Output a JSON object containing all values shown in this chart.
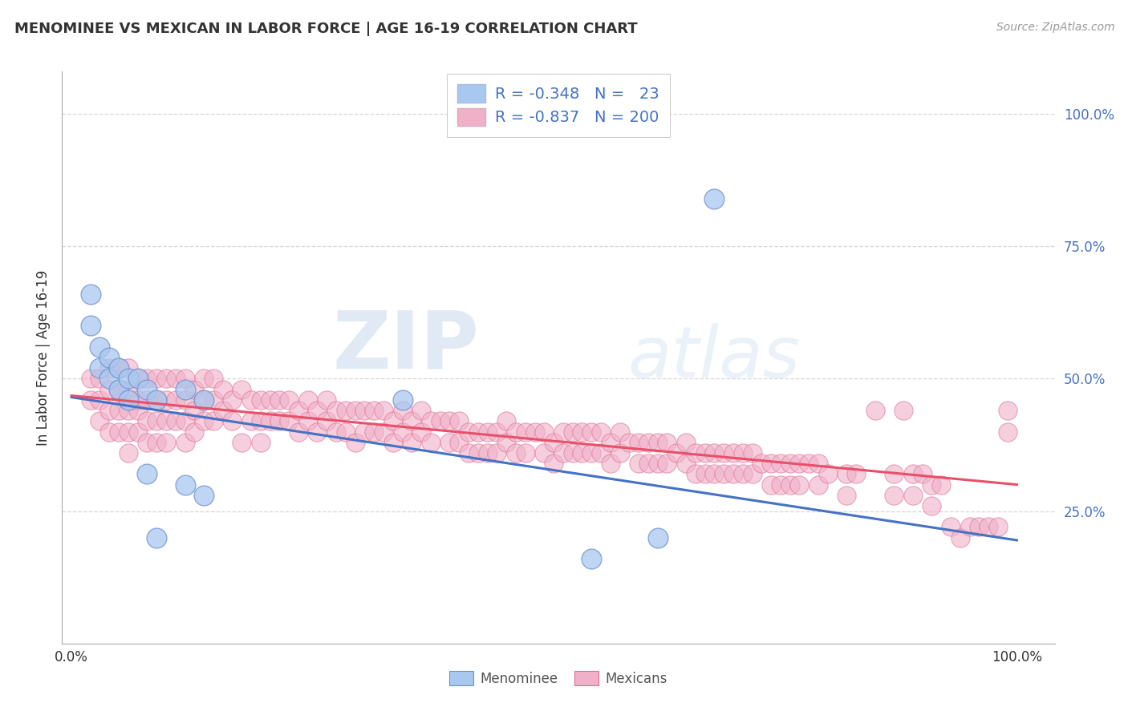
{
  "title": "MENOMINEE VS MEXICAN IN LABOR FORCE | AGE 16-19 CORRELATION CHART",
  "source": "Source: ZipAtlas.com",
  "ylabel": "In Labor Force | Age 16-19",
  "ytick_vals": [
    0.25,
    0.5,
    0.75,
    1.0
  ],
  "ytick_labels": [
    "25.0%",
    "50.0%",
    "75.0%",
    "100.0%"
  ],
  "xtick_vals": [
    0.0,
    1.0
  ],
  "xtick_labels": [
    "0.0%",
    "100.0%"
  ],
  "xlim": [
    -0.01,
    1.04
  ],
  "ylim": [
    0.0,
    1.08
  ],
  "legend_line1": "R = -0.348   N =   23",
  "legend_line2": "R = -0.837   N = 200",
  "menominee_color": "#a8c8f0",
  "mexican_color": "#f0b0c8",
  "menominee_edge_color": "#7090d0",
  "mexican_edge_color": "#e07090",
  "menominee_line_color": "#4472c4",
  "mexican_line_color": "#e8506a",
  "menominee_scatter": [
    [
      0.02,
      0.66
    ],
    [
      0.02,
      0.6
    ],
    [
      0.03,
      0.56
    ],
    [
      0.03,
      0.52
    ],
    [
      0.04,
      0.54
    ],
    [
      0.04,
      0.5
    ],
    [
      0.05,
      0.52
    ],
    [
      0.05,
      0.48
    ],
    [
      0.06,
      0.5
    ],
    [
      0.06,
      0.46
    ],
    [
      0.07,
      0.5
    ],
    [
      0.08,
      0.48
    ],
    [
      0.09,
      0.46
    ],
    [
      0.12,
      0.48
    ],
    [
      0.14,
      0.46
    ],
    [
      0.08,
      0.32
    ],
    [
      0.12,
      0.3
    ],
    [
      0.14,
      0.28
    ],
    [
      0.09,
      0.2
    ],
    [
      0.35,
      0.46
    ],
    [
      0.55,
      0.16
    ],
    [
      0.62,
      0.2
    ],
    [
      0.68,
      0.84
    ]
  ],
  "mexican_scatter": [
    [
      0.02,
      0.5
    ],
    [
      0.02,
      0.46
    ],
    [
      0.03,
      0.5
    ],
    [
      0.03,
      0.46
    ],
    [
      0.03,
      0.42
    ],
    [
      0.04,
      0.52
    ],
    [
      0.04,
      0.48
    ],
    [
      0.04,
      0.44
    ],
    [
      0.04,
      0.4
    ],
    [
      0.05,
      0.52
    ],
    [
      0.05,
      0.48
    ],
    [
      0.05,
      0.44
    ],
    [
      0.05,
      0.4
    ],
    [
      0.06,
      0.52
    ],
    [
      0.06,
      0.48
    ],
    [
      0.06,
      0.44
    ],
    [
      0.06,
      0.4
    ],
    [
      0.06,
      0.36
    ],
    [
      0.07,
      0.5
    ],
    [
      0.07,
      0.46
    ],
    [
      0.07,
      0.44
    ],
    [
      0.07,
      0.4
    ],
    [
      0.08,
      0.5
    ],
    [
      0.08,
      0.46
    ],
    [
      0.08,
      0.42
    ],
    [
      0.08,
      0.38
    ],
    [
      0.09,
      0.5
    ],
    [
      0.09,
      0.46
    ],
    [
      0.09,
      0.42
    ],
    [
      0.09,
      0.38
    ],
    [
      0.1,
      0.5
    ],
    [
      0.1,
      0.46
    ],
    [
      0.1,
      0.42
    ],
    [
      0.1,
      0.38
    ],
    [
      0.11,
      0.5
    ],
    [
      0.11,
      0.46
    ],
    [
      0.11,
      0.42
    ],
    [
      0.12,
      0.5
    ],
    [
      0.12,
      0.46
    ],
    [
      0.12,
      0.42
    ],
    [
      0.12,
      0.38
    ],
    [
      0.13,
      0.48
    ],
    [
      0.13,
      0.44
    ],
    [
      0.13,
      0.4
    ],
    [
      0.14,
      0.5
    ],
    [
      0.14,
      0.46
    ],
    [
      0.14,
      0.42
    ],
    [
      0.15,
      0.5
    ],
    [
      0.15,
      0.46
    ],
    [
      0.15,
      0.42
    ],
    [
      0.16,
      0.48
    ],
    [
      0.16,
      0.44
    ],
    [
      0.17,
      0.46
    ],
    [
      0.17,
      0.42
    ],
    [
      0.18,
      0.48
    ],
    [
      0.18,
      0.38
    ],
    [
      0.19,
      0.46
    ],
    [
      0.19,
      0.42
    ],
    [
      0.2,
      0.46
    ],
    [
      0.2,
      0.42
    ],
    [
      0.2,
      0.38
    ],
    [
      0.21,
      0.46
    ],
    [
      0.21,
      0.42
    ],
    [
      0.22,
      0.46
    ],
    [
      0.22,
      0.42
    ],
    [
      0.23,
      0.46
    ],
    [
      0.23,
      0.42
    ],
    [
      0.24,
      0.44
    ],
    [
      0.24,
      0.4
    ],
    [
      0.25,
      0.46
    ],
    [
      0.25,
      0.42
    ],
    [
      0.26,
      0.44
    ],
    [
      0.26,
      0.4
    ],
    [
      0.27,
      0.46
    ],
    [
      0.27,
      0.42
    ],
    [
      0.28,
      0.44
    ],
    [
      0.28,
      0.4
    ],
    [
      0.29,
      0.44
    ],
    [
      0.29,
      0.4
    ],
    [
      0.3,
      0.44
    ],
    [
      0.3,
      0.38
    ],
    [
      0.31,
      0.44
    ],
    [
      0.31,
      0.4
    ],
    [
      0.32,
      0.44
    ],
    [
      0.32,
      0.4
    ],
    [
      0.33,
      0.44
    ],
    [
      0.33,
      0.4
    ],
    [
      0.34,
      0.42
    ],
    [
      0.34,
      0.38
    ],
    [
      0.35,
      0.44
    ],
    [
      0.35,
      0.4
    ],
    [
      0.36,
      0.42
    ],
    [
      0.36,
      0.38
    ],
    [
      0.37,
      0.44
    ],
    [
      0.37,
      0.4
    ],
    [
      0.38,
      0.42
    ],
    [
      0.38,
      0.38
    ],
    [
      0.39,
      0.42
    ],
    [
      0.4,
      0.42
    ],
    [
      0.4,
      0.38
    ],
    [
      0.41,
      0.42
    ],
    [
      0.41,
      0.38
    ],
    [
      0.42,
      0.4
    ],
    [
      0.42,
      0.36
    ],
    [
      0.43,
      0.4
    ],
    [
      0.43,
      0.36
    ],
    [
      0.44,
      0.4
    ],
    [
      0.44,
      0.36
    ],
    [
      0.45,
      0.4
    ],
    [
      0.45,
      0.36
    ],
    [
      0.46,
      0.42
    ],
    [
      0.46,
      0.38
    ],
    [
      0.47,
      0.4
    ],
    [
      0.47,
      0.36
    ],
    [
      0.48,
      0.4
    ],
    [
      0.48,
      0.36
    ],
    [
      0.49,
      0.4
    ],
    [
      0.5,
      0.4
    ],
    [
      0.5,
      0.36
    ],
    [
      0.51,
      0.38
    ],
    [
      0.51,
      0.34
    ],
    [
      0.52,
      0.4
    ],
    [
      0.52,
      0.36
    ],
    [
      0.53,
      0.4
    ],
    [
      0.53,
      0.36
    ],
    [
      0.54,
      0.4
    ],
    [
      0.54,
      0.36
    ],
    [
      0.55,
      0.4
    ],
    [
      0.55,
      0.36
    ],
    [
      0.56,
      0.4
    ],
    [
      0.56,
      0.36
    ],
    [
      0.57,
      0.38
    ],
    [
      0.57,
      0.34
    ],
    [
      0.58,
      0.4
    ],
    [
      0.58,
      0.36
    ],
    [
      0.59,
      0.38
    ],
    [
      0.6,
      0.38
    ],
    [
      0.6,
      0.34
    ],
    [
      0.61,
      0.38
    ],
    [
      0.61,
      0.34
    ],
    [
      0.62,
      0.38
    ],
    [
      0.62,
      0.34
    ],
    [
      0.63,
      0.38
    ],
    [
      0.63,
      0.34
    ],
    [
      0.64,
      0.36
    ],
    [
      0.65,
      0.38
    ],
    [
      0.65,
      0.34
    ],
    [
      0.66,
      0.36
    ],
    [
      0.66,
      0.32
    ],
    [
      0.67,
      0.36
    ],
    [
      0.67,
      0.32
    ],
    [
      0.68,
      0.36
    ],
    [
      0.68,
      0.32
    ],
    [
      0.69,
      0.36
    ],
    [
      0.69,
      0.32
    ],
    [
      0.7,
      0.36
    ],
    [
      0.7,
      0.32
    ],
    [
      0.71,
      0.36
    ],
    [
      0.71,
      0.32
    ],
    [
      0.72,
      0.36
    ],
    [
      0.72,
      0.32
    ],
    [
      0.73,
      0.34
    ],
    [
      0.74,
      0.34
    ],
    [
      0.74,
      0.3
    ],
    [
      0.75,
      0.34
    ],
    [
      0.75,
      0.3
    ],
    [
      0.76,
      0.34
    ],
    [
      0.76,
      0.3
    ],
    [
      0.77,
      0.34
    ],
    [
      0.77,
      0.3
    ],
    [
      0.78,
      0.34
    ],
    [
      0.79,
      0.34
    ],
    [
      0.79,
      0.3
    ],
    [
      0.8,
      0.32
    ],
    [
      0.82,
      0.32
    ],
    [
      0.82,
      0.28
    ],
    [
      0.83,
      0.32
    ],
    [
      0.85,
      0.44
    ],
    [
      0.87,
      0.32
    ],
    [
      0.87,
      0.28
    ],
    [
      0.88,
      0.44
    ],
    [
      0.89,
      0.32
    ],
    [
      0.89,
      0.28
    ],
    [
      0.9,
      0.32
    ],
    [
      0.91,
      0.3
    ],
    [
      0.91,
      0.26
    ],
    [
      0.92,
      0.3
    ],
    [
      0.93,
      0.22
    ],
    [
      0.94,
      0.2
    ],
    [
      0.95,
      0.22
    ],
    [
      0.96,
      0.22
    ],
    [
      0.97,
      0.22
    ],
    [
      0.98,
      0.22
    ],
    [
      0.99,
      0.44
    ],
    [
      0.99,
      0.4
    ]
  ],
  "menominee_line": [
    [
      0.0,
      0.465
    ],
    [
      1.0,
      0.195
    ]
  ],
  "mexican_line": [
    [
      0.0,
      0.468
    ],
    [
      1.0,
      0.3
    ]
  ],
  "watermark_zip": "ZIP",
  "watermark_atlas": "atlas",
  "background_color": "#ffffff",
  "grid_color": "#cccccc",
  "legend_patch_men": "#a8c8f0",
  "legend_patch_mex": "#f0b0c8"
}
